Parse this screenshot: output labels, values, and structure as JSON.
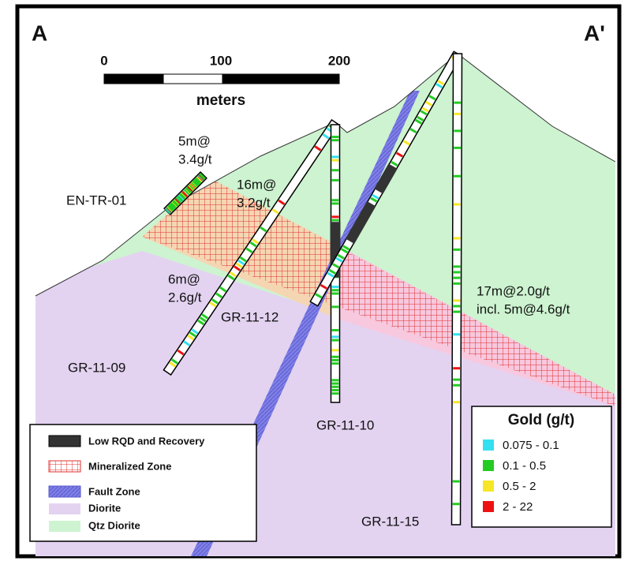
{
  "section": {
    "start": "A",
    "end": "A'"
  },
  "scale_bar": {
    "ticks": [
      "0",
      "100",
      "200"
    ],
    "unit": "meters"
  },
  "drill_holes": [
    {
      "name": "EN-TR-01"
    },
    {
      "name": "GR-11-09"
    },
    {
      "name": "GR-11-10"
    },
    {
      "name": "GR-11-12"
    },
    {
      "name": "GR-11-15"
    }
  ],
  "intercepts": [
    {
      "lines": [
        "5m@",
        "3.4g/t"
      ]
    },
    {
      "lines": [
        "16m@",
        "3.2g/t"
      ]
    },
    {
      "lines": [
        "6m@",
        "2.6g/t"
      ]
    },
    {
      "lines": [
        "17m@2.0g/t",
        "incl. 5m@4.6g/t"
      ]
    }
  ],
  "legend": {
    "items": [
      "Low RQD and Recovery",
      "Mineralized Zone",
      "Fault Zone",
      "Diorite",
      "Qtz Diorite"
    ]
  },
  "gold_legend": {
    "title": "Gold (g/t)",
    "items": [
      "0.075 - 0.1",
      "0.1 - 0.5",
      "0.5 - 2",
      "2 - 22"
    ]
  }
}
